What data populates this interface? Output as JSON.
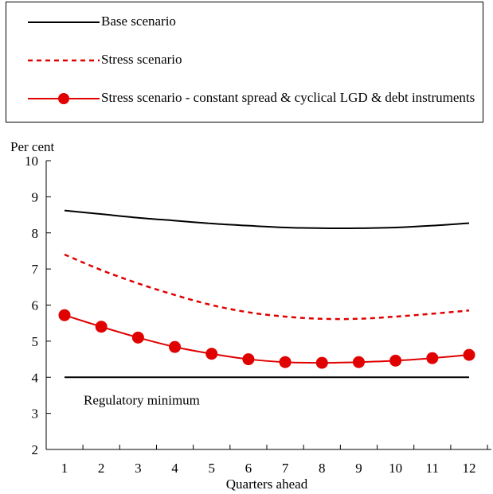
{
  "legend": {
    "items": [
      {
        "label": "Base scenario",
        "color": "#000000",
        "style": "solid"
      },
      {
        "label": "Stress scenario",
        "color": "#e00000",
        "style": "dashed"
      },
      {
        "label": "Stress scenario - constant spread & cyclical LGD & debt instruments",
        "color": "#e00000",
        "style": "solid-markers"
      }
    ]
  },
  "chart_data": {
    "type": "line",
    "ylabel": "Per cent",
    "xlabel": "Quarters ahead",
    "ylim": [
      2,
      10
    ],
    "yticks": [
      "2",
      "3",
      "4",
      "5",
      "6",
      "7",
      "8",
      "9",
      "10"
    ],
    "categories": [
      "1",
      "2",
      "3",
      "4",
      "5",
      "6",
      "7",
      "8",
      "9",
      "10",
      "11",
      "12"
    ],
    "series": [
      {
        "name": "Base scenario",
        "color": "#000000",
        "style": "solid",
        "values": [
          8.62,
          8.52,
          8.42,
          8.34,
          8.26,
          8.2,
          8.15,
          8.13,
          8.13,
          8.15,
          8.2,
          8.27
        ]
      },
      {
        "name": "Stress scenario",
        "color": "#e00000",
        "style": "dashed",
        "values": [
          7.4,
          6.97,
          6.6,
          6.28,
          6.0,
          5.8,
          5.68,
          5.62,
          5.62,
          5.68,
          5.76,
          5.85
        ]
      },
      {
        "name": "Stress scenario - constant spread & cyclical LGD & debt instruments",
        "color": "#e00000",
        "style": "solid-markers",
        "values": [
          5.72,
          5.4,
          5.1,
          4.84,
          4.65,
          4.5,
          4.42,
          4.4,
          4.42,
          4.46,
          4.53,
          4.62
        ]
      }
    ],
    "reference_line": {
      "value": 4,
      "label": "Regulatory minimum",
      "color": "#000000"
    }
  }
}
